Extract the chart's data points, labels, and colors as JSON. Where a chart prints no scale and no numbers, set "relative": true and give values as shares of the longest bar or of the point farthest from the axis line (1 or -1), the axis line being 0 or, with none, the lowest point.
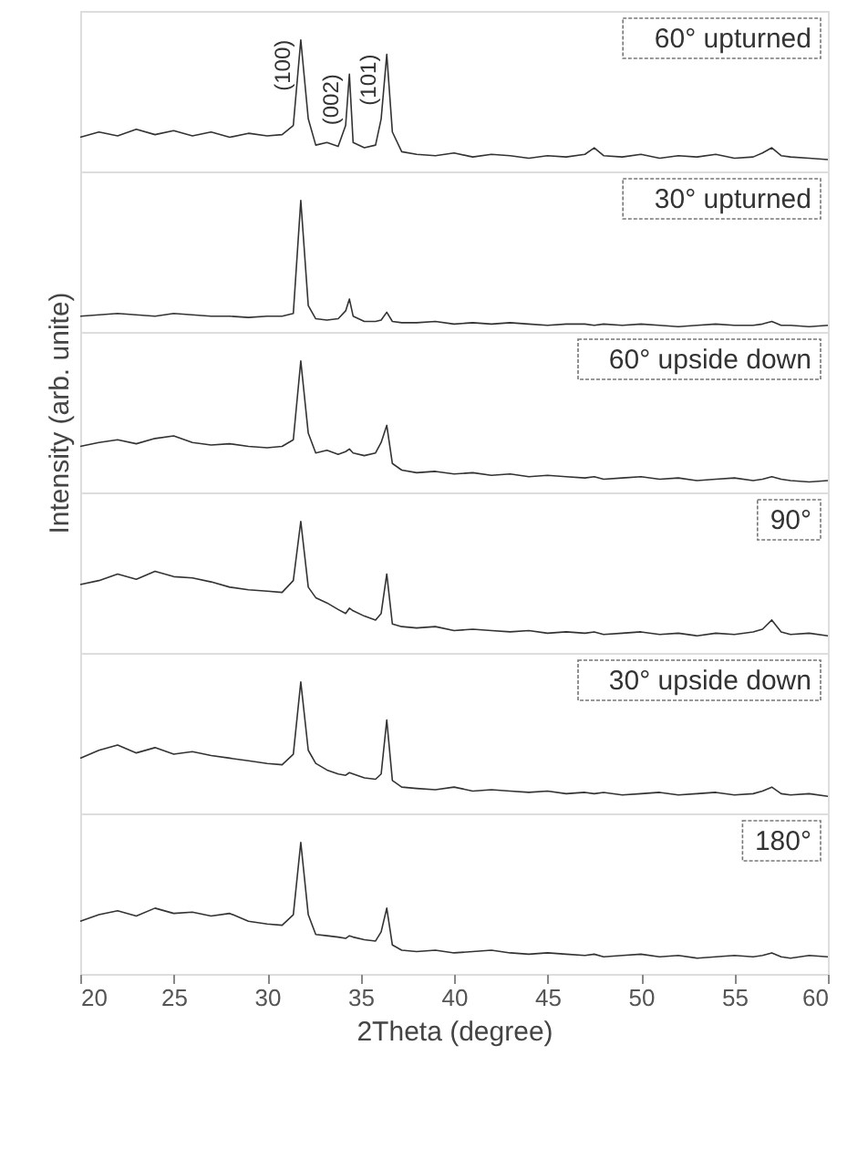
{
  "chart_data": [
    {
      "type": "line",
      "relative": true,
      "xlim": [
        20,
        60
      ],
      "tick_labels": false,
      "legend": "top right",
      "annotations": [
        {
          "text": "(100)",
          "x": 31.8,
          "y": 1
        },
        {
          "text": "(002)",
          "x": 34.4,
          "y": 0.74
        },
        {
          "text": "(101)",
          "x": 36.4,
          "y": 0.89
        }
      ],
      "series": [
        {
          "name": "60° upturned",
          "color": "#333333",
          "x": [
            20,
            21,
            22,
            23,
            24,
            25,
            26,
            27,
            28,
            29,
            30,
            30.8,
            31.4,
            31.8,
            32.2,
            32.6,
            33.2,
            33.8,
            34.2,
            34.4,
            34.6,
            35.2,
            35.8,
            36.1,
            36.4,
            36.7,
            37.2,
            38,
            39,
            40,
            41,
            42,
            43,
            44,
            45,
            46,
            47,
            47.5,
            48,
            49,
            50,
            51,
            52,
            53,
            54,
            55,
            56,
            56.5,
            57,
            57.5,
            58,
            59,
            60
          ],
          "values": [
            0.26,
            0.3,
            0.27,
            0.32,
            0.28,
            0.31,
            0.27,
            0.3,
            0.26,
            0.29,
            0.27,
            0.28,
            0.35,
            1,
            0.4,
            0.2,
            0.22,
            0.19,
            0.35,
            0.74,
            0.22,
            0.18,
            0.2,
            0.4,
            0.89,
            0.3,
            0.15,
            0.13,
            0.12,
            0.14,
            0.11,
            0.13,
            0.12,
            0.1,
            0.12,
            0.11,
            0.13,
            0.18,
            0.12,
            0.11,
            0.13,
            0.1,
            0.12,
            0.11,
            0.13,
            0.1,
            0.11,
            0.14,
            0.18,
            0.12,
            0.11,
            0.1,
            0.09
          ]
        }
      ]
    },
    {
      "type": "line",
      "relative": true,
      "xlim": [
        20,
        60
      ],
      "tick_labels": false,
      "legend": "top right",
      "series": [
        {
          "name": "30° upturned",
          "color": "#333333",
          "x": [
            20,
            21,
            22,
            23,
            24,
            25,
            26,
            27,
            28,
            29,
            30,
            30.8,
            31.4,
            31.8,
            32.2,
            32.6,
            33.2,
            33.8,
            34.2,
            34.4,
            34.6,
            35.2,
            35.8,
            36.1,
            36.4,
            36.7,
            37.2,
            38,
            39,
            40,
            41,
            42,
            43,
            44,
            45,
            46,
            47,
            47.5,
            48,
            49,
            50,
            51,
            52,
            53,
            54,
            55,
            56,
            56.5,
            57,
            57.5,
            58,
            59,
            60
          ],
          "values": [
            0.12,
            0.13,
            0.14,
            0.13,
            0.12,
            0.14,
            0.13,
            0.12,
            0.12,
            0.11,
            0.12,
            0.12,
            0.14,
            1,
            0.2,
            0.1,
            0.09,
            0.1,
            0.16,
            0.25,
            0.12,
            0.08,
            0.08,
            0.09,
            0.15,
            0.08,
            0.07,
            0.07,
            0.08,
            0.06,
            0.07,
            0.06,
            0.07,
            0.06,
            0.05,
            0.06,
            0.06,
            0.05,
            0.06,
            0.05,
            0.06,
            0.05,
            0.04,
            0.05,
            0.06,
            0.05,
            0.05,
            0.06,
            0.08,
            0.05,
            0.05,
            0.04,
            0.05
          ]
        }
      ]
    },
    {
      "type": "line",
      "relative": true,
      "ylabel": "Intensity (arb. unite)",
      "xlim": [
        20,
        60
      ],
      "tick_labels": false,
      "legend": "top right",
      "series": [
        {
          "name": "60° upside down",
          "color": "#333333",
          "x": [
            20,
            21,
            22,
            23,
            24,
            25,
            26,
            27,
            28,
            29,
            30,
            30.8,
            31.4,
            31.8,
            32.2,
            32.6,
            33.2,
            33.8,
            34.2,
            34.4,
            34.6,
            35.2,
            35.8,
            36.1,
            36.4,
            36.7,
            37.2,
            38,
            39,
            40,
            41,
            42,
            43,
            44,
            45,
            46,
            47,
            47.5,
            48,
            49,
            50,
            51,
            52,
            53,
            54,
            55,
            56,
            56.5,
            57,
            57.5,
            58,
            59,
            60
          ],
          "values": [
            0.35,
            0.38,
            0.4,
            0.37,
            0.41,
            0.43,
            0.38,
            0.36,
            0.37,
            0.35,
            0.34,
            0.35,
            0.4,
            1,
            0.45,
            0.3,
            0.32,
            0.29,
            0.31,
            0.33,
            0.3,
            0.28,
            0.3,
            0.38,
            0.51,
            0.22,
            0.17,
            0.15,
            0.16,
            0.14,
            0.15,
            0.13,
            0.14,
            0.12,
            0.13,
            0.12,
            0.11,
            0.12,
            0.1,
            0.11,
            0.12,
            0.1,
            0.11,
            0.09,
            0.1,
            0.11,
            0.09,
            0.1,
            0.12,
            0.1,
            0.09,
            0.08,
            0.09
          ]
        }
      ]
    },
    {
      "type": "line",
      "relative": true,
      "xlim": [
        20,
        60
      ],
      "tick_labels": false,
      "legend": "top right",
      "series": [
        {
          "name": "90°",
          "color": "#333333",
          "x": [
            20,
            21,
            22,
            23,
            24,
            25,
            26,
            27,
            28,
            29,
            30,
            30.8,
            31.4,
            31.8,
            32.2,
            32.6,
            33.2,
            33.8,
            34.2,
            34.4,
            34.6,
            35.2,
            35.8,
            36.1,
            36.4,
            36.7,
            37.2,
            38,
            39,
            40,
            41,
            42,
            43,
            44,
            45,
            46,
            47,
            47.5,
            48,
            49,
            50,
            51,
            52,
            53,
            54,
            55,
            56,
            56.5,
            57,
            57.5,
            58,
            59,
            60
          ],
          "values": [
            0.52,
            0.55,
            0.6,
            0.56,
            0.62,
            0.58,
            0.57,
            0.54,
            0.5,
            0.48,
            0.47,
            0.46,
            0.55,
            1,
            0.5,
            0.42,
            0.38,
            0.33,
            0.3,
            0.34,
            0.32,
            0.28,
            0.25,
            0.3,
            0.6,
            0.22,
            0.2,
            0.19,
            0.2,
            0.17,
            0.18,
            0.17,
            0.16,
            0.17,
            0.15,
            0.16,
            0.15,
            0.16,
            0.14,
            0.15,
            0.16,
            0.14,
            0.15,
            0.13,
            0.15,
            0.14,
            0.16,
            0.18,
            0.25,
            0.16,
            0.14,
            0.15,
            0.13
          ]
        }
      ]
    },
    {
      "type": "line",
      "relative": true,
      "xlim": [
        20,
        60
      ],
      "tick_labels": false,
      "legend": "top right",
      "series": [
        {
          "name": "30° upside down",
          "color": "#333333",
          "x": [
            20,
            21,
            22,
            23,
            24,
            25,
            26,
            27,
            28,
            29,
            30,
            30.8,
            31.4,
            31.8,
            32.2,
            32.6,
            33.2,
            33.8,
            34.2,
            34.4,
            34.6,
            35.2,
            35.8,
            36.1,
            36.4,
            36.7,
            37.2,
            38,
            39,
            40,
            41,
            42,
            43,
            44,
            45,
            46,
            47,
            47.5,
            48,
            49,
            50,
            51,
            52,
            53,
            54,
            55,
            56,
            56.5,
            57,
            57.5,
            58,
            59,
            60
          ],
          "values": [
            0.42,
            0.48,
            0.52,
            0.46,
            0.5,
            0.45,
            0.47,
            0.44,
            0.42,
            0.4,
            0.38,
            0.37,
            0.45,
            1,
            0.48,
            0.38,
            0.33,
            0.3,
            0.29,
            0.31,
            0.3,
            0.27,
            0.26,
            0.3,
            0.71,
            0.25,
            0.2,
            0.19,
            0.18,
            0.2,
            0.17,
            0.18,
            0.17,
            0.16,
            0.17,
            0.15,
            0.16,
            0.15,
            0.16,
            0.14,
            0.15,
            0.16,
            0.14,
            0.15,
            0.16,
            0.14,
            0.15,
            0.17,
            0.2,
            0.15,
            0.14,
            0.15,
            0.13
          ]
        }
      ]
    },
    {
      "type": "line",
      "relative": true,
      "xlim": [
        20,
        60
      ],
      "xticks": [
        20,
        25,
        30,
        35,
        40,
        45,
        50,
        55,
        60
      ],
      "xlabel": "2Theta (degree)",
      "tick_labels": "x",
      "legend": "top right",
      "series": [
        {
          "name": "180°",
          "color": "#333333",
          "x": [
            20,
            21,
            22,
            23,
            24,
            25,
            26,
            27,
            28,
            29,
            30,
            30.8,
            31.4,
            31.8,
            32.2,
            32.6,
            33.2,
            33.8,
            34.2,
            34.4,
            34.6,
            35.2,
            35.8,
            36.1,
            36.4,
            36.7,
            37.2,
            38,
            39,
            40,
            41,
            42,
            43,
            44,
            45,
            46,
            47,
            47.5,
            48,
            49,
            50,
            51,
            52,
            53,
            54,
            55,
            56,
            56.5,
            57,
            57.5,
            58,
            59,
            60
          ],
          "values": [
            0.4,
            0.45,
            0.48,
            0.44,
            0.5,
            0.46,
            0.47,
            0.44,
            0.46,
            0.4,
            0.38,
            0.37,
            0.45,
            1,
            0.45,
            0.3,
            0.29,
            0.28,
            0.27,
            0.29,
            0.28,
            0.26,
            0.25,
            0.32,
            0.5,
            0.22,
            0.18,
            0.17,
            0.18,
            0.16,
            0.17,
            0.18,
            0.16,
            0.15,
            0.16,
            0.15,
            0.14,
            0.15,
            0.13,
            0.14,
            0.15,
            0.13,
            0.14,
            0.12,
            0.13,
            0.14,
            0.13,
            0.14,
            0.16,
            0.13,
            0.12,
            0.14,
            0.13
          ]
        }
      ]
    }
  ]
}
